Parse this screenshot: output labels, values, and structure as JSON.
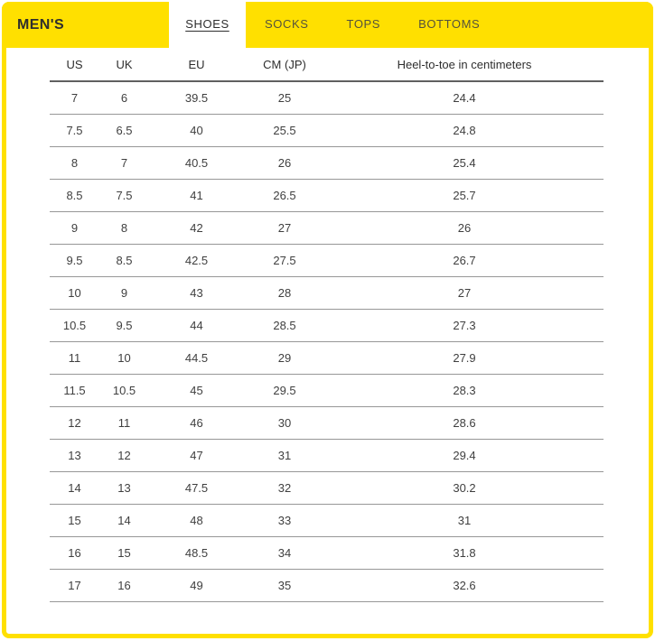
{
  "title": {
    "label": "MEN'S"
  },
  "tabs": [
    {
      "label": "SHOES",
      "active": true
    },
    {
      "label": "SOCKS",
      "active": false
    },
    {
      "label": "TOPS",
      "active": false
    },
    {
      "label": "BOTTOMS",
      "active": false
    }
  ],
  "colors": {
    "accent_yellow": "#FFE000",
    "title_text": "#2E2E2E",
    "tab_text": "#55523C",
    "active_tab_text": "#2E2E2E",
    "header_rule": "#606060",
    "row_rule": "#979797",
    "cell_text": "#3F3F3F"
  },
  "size_chart": {
    "columns": [
      "US",
      "UK",
      "EU",
      "CM (JP)",
      "Heel-to-toe in centimeters"
    ],
    "rows": [
      [
        "7",
        "6",
        "39.5",
        "25",
        "24.4"
      ],
      [
        "7.5",
        "6.5",
        "40",
        "25.5",
        "24.8"
      ],
      [
        "8",
        "7",
        "40.5",
        "26",
        "25.4"
      ],
      [
        "8.5",
        "7.5",
        "41",
        "26.5",
        "25.7"
      ],
      [
        "9",
        "8",
        "42",
        "27",
        "26"
      ],
      [
        "9.5",
        "8.5",
        "42.5",
        "27.5",
        "26.7"
      ],
      [
        "10",
        "9",
        "43",
        "28",
        "27"
      ],
      [
        "10.5",
        "9.5",
        "44",
        "28.5",
        "27.3"
      ],
      [
        "11",
        "10",
        "44.5",
        "29",
        "27.9"
      ],
      [
        "11.5",
        "10.5",
        "45",
        "29.5",
        "28.3"
      ],
      [
        "12",
        "11",
        "46",
        "30",
        "28.6"
      ],
      [
        "13",
        "12",
        "47",
        "31",
        "29.4"
      ],
      [
        "14",
        "13",
        "47.5",
        "32",
        "30.2"
      ],
      [
        "15",
        "14",
        "48",
        "33",
        "31"
      ],
      [
        "16",
        "15",
        "48.5",
        "34",
        "31.8"
      ],
      [
        "17",
        "16",
        "49",
        "35",
        "32.6"
      ]
    ]
  }
}
